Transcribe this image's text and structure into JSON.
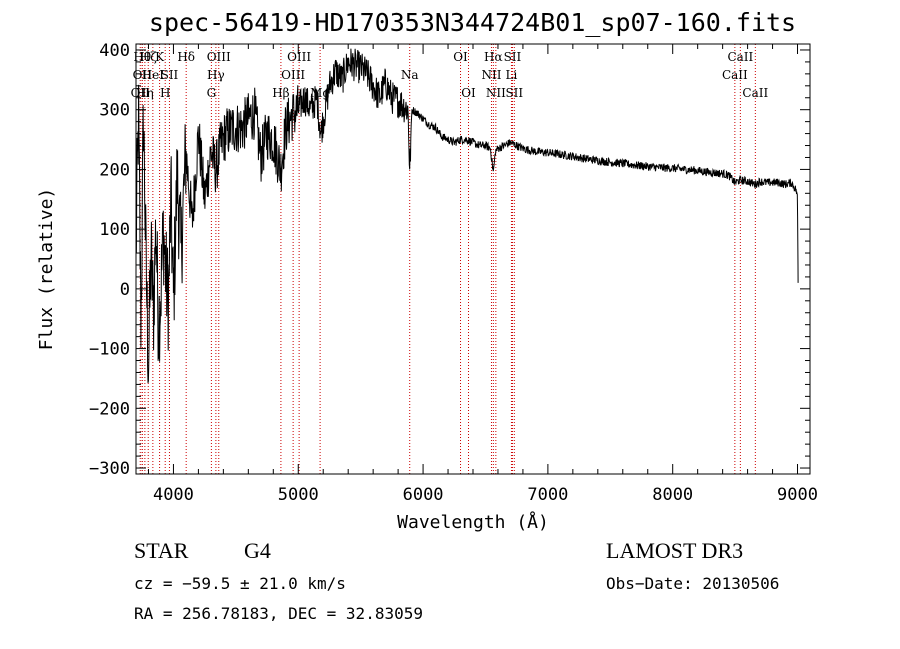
{
  "chart_data": {
    "type": "line",
    "title": "spec-56419-HD170353N344724B01_sp07-160.fits",
    "xlabel": "Wavelength (Å)",
    "ylabel": "Flux (relative)",
    "xlim": [
      3700,
      9100
    ],
    "ylim": [
      -310,
      410
    ],
    "x_ticks": [
      4000,
      5000,
      6000,
      7000,
      8000,
      9000
    ],
    "y_ticks": [
      -300,
      -200,
      -100,
      0,
      100,
      200,
      300,
      400
    ],
    "series": [
      {
        "name": "spectrum",
        "x": [
          3700,
          3720,
          3740,
          3760,
          3780,
          3800,
          3820,
          3840,
          3860,
          3880,
          3900,
          3920,
          3940,
          3960,
          3980,
          4000,
          4030,
          4060,
          4100,
          4150,
          4200,
          4250,
          4300,
          4340,
          4380,
          4420,
          4480,
          4550,
          4600,
          4650,
          4700,
          4750,
          4800,
          4860,
          4900,
          4950,
          5000,
          5050,
          5100,
          5150,
          5180,
          5250,
          5300,
          5350,
          5400,
          5450,
          5500,
          5550,
          5600,
          5650,
          5700,
          5750,
          5800,
          5850,
          5880,
          5893,
          5910,
          5950,
          6000,
          6050,
          6100,
          6150,
          6200,
          6250,
          6300,
          6350,
          6400,
          6450,
          6500,
          6540,
          6563,
          6580,
          6600,
          6650,
          6700,
          6750,
          6800,
          6900,
          7000,
          7100,
          7200,
          7300,
          7400,
          7500,
          7600,
          7700,
          7800,
          7900,
          8000,
          8100,
          8200,
          8300,
          8400,
          8450,
          8498,
          8542,
          8600,
          8662,
          8700,
          8750,
          8800,
          8850,
          8900,
          8950,
          8990,
          9000,
          9005
        ],
        "values": [
          60,
          290,
          -60,
          300,
          40,
          -130,
          60,
          -40,
          110,
          -60,
          0,
          100,
          20,
          -20,
          150,
          -20,
          190,
          60,
          230,
          110,
          260,
          150,
          230,
          200,
          240,
          260,
          270,
          270,
          285,
          295,
          220,
          260,
          250,
          200,
          270,
          290,
          300,
          320,
          300,
          320,
          260,
          340,
          365,
          350,
          380,
          375,
          370,
          360,
          340,
          320,
          345,
          320,
          315,
          305,
          300,
          195,
          300,
          295,
          285,
          275,
          270,
          255,
          250,
          245,
          250,
          250,
          245,
          240,
          240,
          235,
          195,
          230,
          235,
          240,
          245,
          240,
          235,
          230,
          228,
          225,
          222,
          218,
          215,
          212,
          210,
          207,
          205,
          203,
          202,
          200,
          198,
          195,
          193,
          190,
          178,
          182,
          180,
          175,
          180,
          178,
          178,
          178,
          175,
          178,
          165,
          150,
          10
        ]
      }
    ],
    "lines": [
      {
        "wavelength": 3734,
        "label": "OII",
        "row": 2
      },
      {
        "wavelength": 3750,
        "label": "Hθ",
        "row": 0
      },
      {
        "wavelength": 3750,
        "label": "OII",
        "row": 1
      },
      {
        "wavelength": 3771,
        "label": "Hη",
        "row": 2
      },
      {
        "wavelength": 3798,
        "label": "Hζ",
        "row": 0
      },
      {
        "wavelength": 3835,
        "label": "HeI",
        "row": 1
      },
      {
        "wavelength": 3889,
        "label": "K",
        "row": 0
      },
      {
        "wavelength": 3934,
        "label": "H",
        "row": 2
      },
      {
        "wavelength": 3968,
        "label": "SII",
        "row": 1
      },
      {
        "wavelength": 4102,
        "label": "Hδ",
        "row": 0
      },
      {
        "wavelength": 4304,
        "label": "G",
        "row": 2
      },
      {
        "wavelength": 4340,
        "label": "Hγ",
        "row": 1
      },
      {
        "wavelength": 4363,
        "label": "OIII",
        "row": 0
      },
      {
        "wavelength": 4861,
        "label": "Hβ",
        "row": 2
      },
      {
        "wavelength": 4959,
        "label": "OIII",
        "row": 1
      },
      {
        "wavelength": 5007,
        "label": "OIII",
        "row": 0
      },
      {
        "wavelength": 5175,
        "label": "Mg",
        "row": 2
      },
      {
        "wavelength": 5893,
        "label": "Na",
        "row": 1
      },
      {
        "wavelength": 6300,
        "label": "OI",
        "row": 0
      },
      {
        "wavelength": 6364,
        "label": "OI",
        "row": 2
      },
      {
        "wavelength": 6548,
        "label": "NII",
        "row": 1
      },
      {
        "wavelength": 6563,
        "label": "Hα",
        "row": 0
      },
      {
        "wavelength": 6583,
        "label": "NII",
        "row": 2
      },
      {
        "wavelength": 6708,
        "label": "Li",
        "row": 1
      },
      {
        "wavelength": 6716,
        "label": "SII",
        "row": 0
      },
      {
        "wavelength": 6731,
        "label": "SII",
        "row": 2
      },
      {
        "wavelength": 8498,
        "label": "CaII",
        "row": 1
      },
      {
        "wavelength": 8542,
        "label": "CaII",
        "row": 0
      },
      {
        "wavelength": 8662,
        "label": "CaII",
        "row": 2
      }
    ]
  },
  "info": {
    "object_class": "STAR",
    "subclass": "G4",
    "survey": "LAMOST DR3",
    "cz": "cz = −59.5 ± 21.0 km/s",
    "obs_date": "Obs−Date: 20130506",
    "coords": "RA = 256.78183, DEC =  32.83059"
  },
  "colors": {
    "spectrum": "#000000",
    "line_markers": "#cc0000",
    "axes": "#000000"
  }
}
